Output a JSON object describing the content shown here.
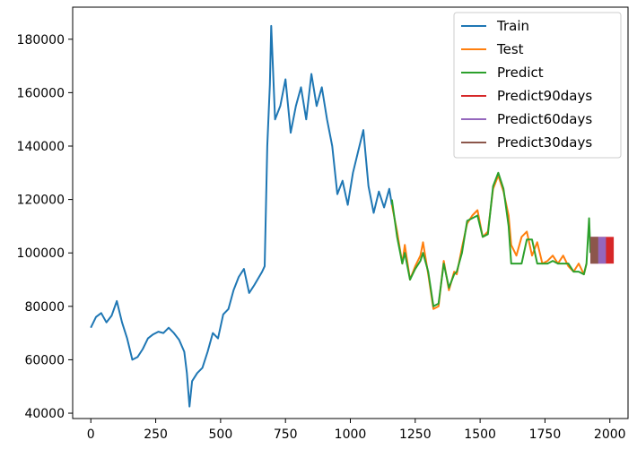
{
  "chart_data": {
    "type": "line",
    "title": "",
    "xlabel": "",
    "ylabel": "",
    "xlim": [
      -70,
      2070
    ],
    "ylim": [
      38000,
      192000
    ],
    "grid": false,
    "legend_position": "top-right",
    "x_ticks": [
      0,
      250,
      500,
      750,
      1000,
      1250,
      1500,
      1750,
      2000
    ],
    "x_tick_labels": [
      "0",
      "250",
      "500",
      "750",
      "1000",
      "1250",
      "1500",
      "1750",
      "2000"
    ],
    "y_ticks": [
      40000,
      60000,
      80000,
      100000,
      120000,
      140000,
      160000,
      180000
    ],
    "y_tick_labels": [
      "40000",
      "60000",
      "80000",
      "100000",
      "120000",
      "140000",
      "160000",
      "180000"
    ],
    "series": [
      {
        "name": "Train",
        "color": "#1f77b4",
        "points": [
          [
            0,
            72000
          ],
          [
            20,
            76000
          ],
          [
            40,
            77500
          ],
          [
            60,
            74000
          ],
          [
            80,
            76500
          ],
          [
            100,
            82000
          ],
          [
            120,
            74000
          ],
          [
            140,
            68000
          ],
          [
            160,
            60000
          ],
          [
            180,
            61000
          ],
          [
            200,
            64000
          ],
          [
            220,
            68000
          ],
          [
            240,
            69500
          ],
          [
            260,
            70500
          ],
          [
            280,
            70000
          ],
          [
            300,
            72000
          ],
          [
            320,
            70000
          ],
          [
            340,
            67500
          ],
          [
            360,
            63000
          ],
          [
            370,
            55000
          ],
          [
            380,
            42500
          ],
          [
            390,
            52000
          ],
          [
            410,
            55000
          ],
          [
            430,
            57000
          ],
          [
            450,
            63000
          ],
          [
            470,
            70000
          ],
          [
            490,
            68000
          ],
          [
            510,
            77000
          ],
          [
            530,
            79000
          ],
          [
            550,
            86000
          ],
          [
            570,
            91000
          ],
          [
            590,
            94000
          ],
          [
            610,
            85000
          ],
          [
            630,
            88000
          ],
          [
            660,
            93000
          ],
          [
            670,
            95000
          ],
          [
            680,
            140000
          ],
          [
            690,
            163000
          ],
          [
            695,
            185000
          ],
          [
            710,
            150000
          ],
          [
            730,
            155000
          ],
          [
            750,
            165000
          ],
          [
            770,
            145000
          ],
          [
            790,
            155000
          ],
          [
            810,
            162000
          ],
          [
            830,
            150000
          ],
          [
            850,
            167000
          ],
          [
            870,
            155000
          ],
          [
            890,
            162000
          ],
          [
            910,
            150000
          ],
          [
            930,
            140000
          ],
          [
            950,
            122000
          ],
          [
            970,
            127000
          ],
          [
            990,
            118000
          ],
          [
            1010,
            130000
          ],
          [
            1030,
            138000
          ],
          [
            1050,
            146000
          ],
          [
            1070,
            125000
          ],
          [
            1090,
            115000
          ],
          [
            1110,
            123000
          ],
          [
            1130,
            117000
          ],
          [
            1150,
            124000
          ],
          [
            1160,
            118000
          ]
        ]
      },
      {
        "name": "Test",
        "color": "#ff7f0e",
        "points": [
          [
            1160,
            118000
          ],
          [
            1180,
            108000
          ],
          [
            1200,
            96000
          ],
          [
            1210,
            103000
          ],
          [
            1230,
            90000
          ],
          [
            1250,
            95000
          ],
          [
            1270,
            99000
          ],
          [
            1280,
            104000
          ],
          [
            1300,
            92000
          ],
          [
            1320,
            79000
          ],
          [
            1340,
            80000
          ],
          [
            1360,
            97000
          ],
          [
            1380,
            86000
          ],
          [
            1400,
            93000
          ],
          [
            1410,
            92000
          ],
          [
            1430,
            102000
          ],
          [
            1450,
            111000
          ],
          [
            1470,
            114000
          ],
          [
            1490,
            116000
          ],
          [
            1510,
            106000
          ],
          [
            1530,
            108000
          ],
          [
            1550,
            124000
          ],
          [
            1570,
            129000
          ],
          [
            1590,
            123000
          ],
          [
            1610,
            114000
          ],
          [
            1620,
            103000
          ],
          [
            1640,
            99000
          ],
          [
            1660,
            106000
          ],
          [
            1680,
            108000
          ],
          [
            1700,
            99000
          ],
          [
            1720,
            104000
          ],
          [
            1740,
            96000
          ],
          [
            1760,
            97000
          ],
          [
            1780,
            99000
          ],
          [
            1800,
            96000
          ],
          [
            1820,
            99000
          ],
          [
            1840,
            95000
          ],
          [
            1860,
            93000
          ],
          [
            1880,
            96000
          ],
          [
            1900,
            92000
          ],
          [
            1910,
            96000
          ]
        ]
      },
      {
        "name": "Predict",
        "color": "#2ca02c",
        "points": [
          [
            1160,
            120000
          ],
          [
            1180,
            106000
          ],
          [
            1200,
            96000
          ],
          [
            1210,
            100000
          ],
          [
            1230,
            90000
          ],
          [
            1250,
            94000
          ],
          [
            1270,
            97000
          ],
          [
            1280,
            100000
          ],
          [
            1300,
            93000
          ],
          [
            1320,
            80000
          ],
          [
            1340,
            81000
          ],
          [
            1360,
            96000
          ],
          [
            1380,
            87000
          ],
          [
            1400,
            92000
          ],
          [
            1410,
            93000
          ],
          [
            1430,
            100000
          ],
          [
            1450,
            112000
          ],
          [
            1470,
            113000
          ],
          [
            1490,
            114000
          ],
          [
            1510,
            106000
          ],
          [
            1530,
            107000
          ],
          [
            1550,
            125000
          ],
          [
            1570,
            130000
          ],
          [
            1590,
            124000
          ],
          [
            1610,
            110000
          ],
          [
            1620,
            96000
          ],
          [
            1640,
            96000
          ],
          [
            1660,
            96000
          ],
          [
            1680,
            105000
          ],
          [
            1700,
            105000
          ],
          [
            1720,
            96000
          ],
          [
            1740,
            96000
          ],
          [
            1760,
            96000
          ],
          [
            1780,
            97000
          ],
          [
            1800,
            96000
          ],
          [
            1820,
            96000
          ],
          [
            1840,
            96000
          ],
          [
            1860,
            93000
          ],
          [
            1880,
            93000
          ],
          [
            1900,
            92000
          ],
          [
            1910,
            96000
          ],
          [
            1920,
            113000
          ],
          [
            1925,
            100000
          ]
        ]
      },
      {
        "name": "Predict90days",
        "color": "#d62728",
        "band": [
          1925,
          2015
        ],
        "range": [
          96000,
          106000
        ]
      },
      {
        "name": "Predict60days",
        "color": "#9467bd",
        "band": [
          1925,
          1985
        ],
        "range": [
          96000,
          106000
        ]
      },
      {
        "name": "Predict30days",
        "color": "#8c564b",
        "band": [
          1925,
          1955
        ],
        "range": [
          96000,
          106000
        ]
      }
    ]
  }
}
